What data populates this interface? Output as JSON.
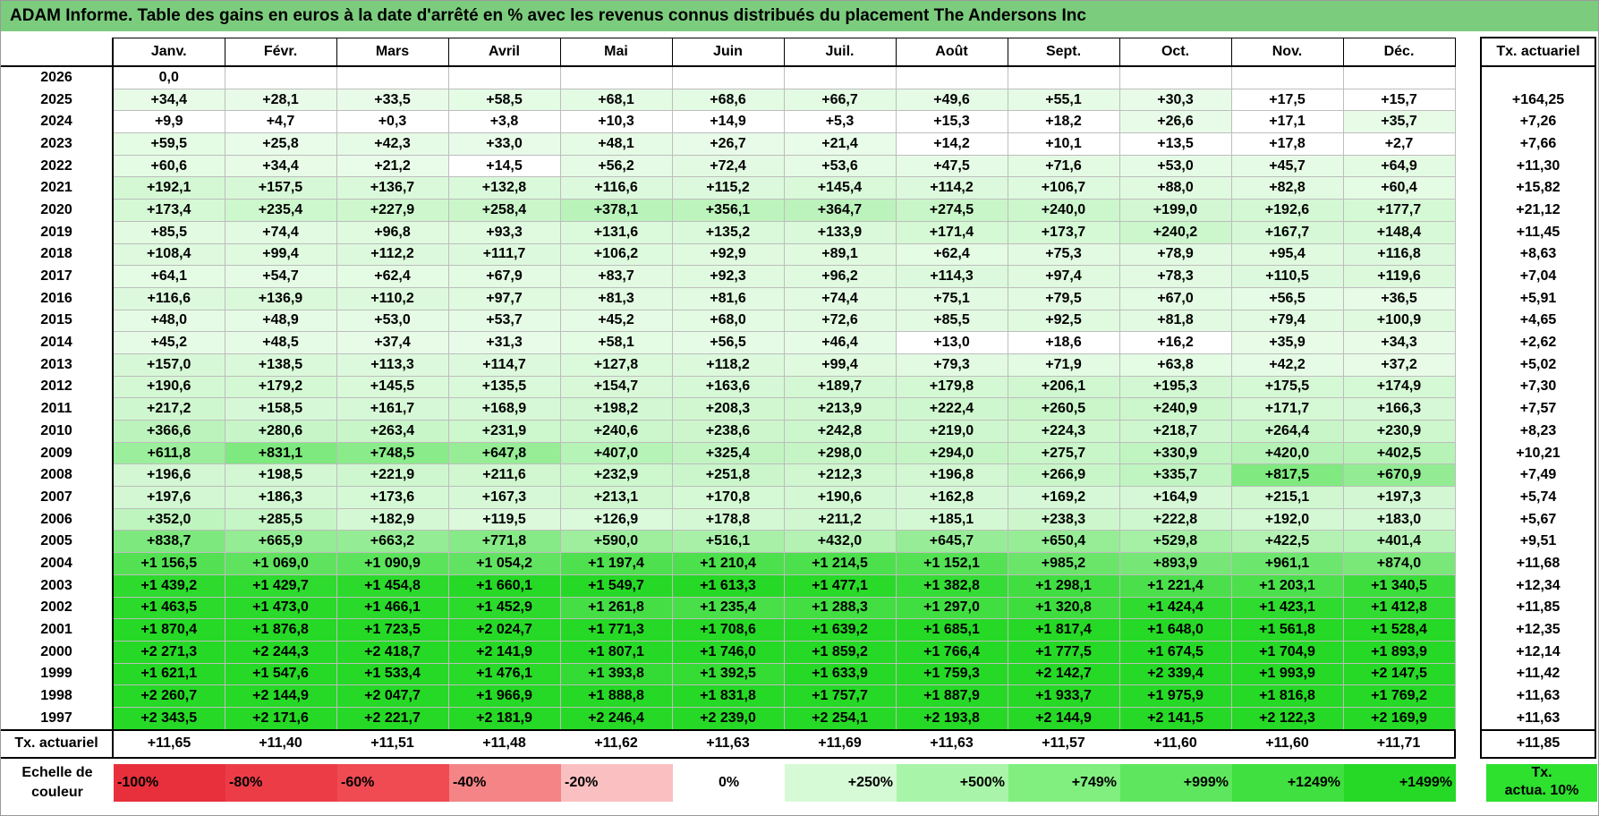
{
  "title": "ADAM Informe. Table des gains en euros à la date d'arrêté en % avec les revenus connus distribués du placement The Andersons Inc",
  "months": [
    "Janv.",
    "Févr.",
    "Mars",
    "Avril",
    "Mai",
    "Juin",
    "Juil.",
    "Août",
    "Sept.",
    "Oct.",
    "Nov.",
    "Déc."
  ],
  "txa_header": "Tx. actuariel",
  "rows": [
    {
      "year": "2026",
      "values": [
        "0,0",
        "",
        "",
        "",
        "",
        "",
        "",
        "",
        "",
        "",
        "",
        ""
      ],
      "txa": ""
    },
    {
      "year": "2025",
      "values": [
        "+34,4",
        "+28,1",
        "+33,5",
        "+58,5",
        "+68,1",
        "+68,6",
        "+66,7",
        "+49,6",
        "+55,1",
        "+30,3",
        "+17,5",
        "+15,7"
      ],
      "txa": "+164,25"
    },
    {
      "year": "2024",
      "values": [
        "+9,9",
        "+4,7",
        "+0,3",
        "+3,8",
        "+10,3",
        "+14,9",
        "+5,3",
        "+15,3",
        "+18,2",
        "+26,6",
        "+17,1",
        "+35,7"
      ],
      "txa": "+7,26"
    },
    {
      "year": "2023",
      "values": [
        "+59,5",
        "+25,8",
        "+42,3",
        "+33,0",
        "+48,1",
        "+26,7",
        "+21,4",
        "+14,2",
        "+10,1",
        "+13,5",
        "+17,8",
        "+2,7"
      ],
      "txa": "+7,66"
    },
    {
      "year": "2022",
      "values": [
        "+60,6",
        "+34,4",
        "+21,2",
        "+14,5",
        "+56,2",
        "+72,4",
        "+53,6",
        "+47,5",
        "+71,6",
        "+53,0",
        "+45,7",
        "+64,9"
      ],
      "txa": "+11,30"
    },
    {
      "year": "2021",
      "values": [
        "+192,1",
        "+157,5",
        "+136,7",
        "+132,8",
        "+116,6",
        "+115,2",
        "+145,4",
        "+114,2",
        "+106,7",
        "+88,0",
        "+82,8",
        "+60,4"
      ],
      "txa": "+15,82"
    },
    {
      "year": "2020",
      "values": [
        "+173,4",
        "+235,4",
        "+227,9",
        "+258,4",
        "+378,1",
        "+356,1",
        "+364,7",
        "+274,5",
        "+240,0",
        "+199,0",
        "+192,6",
        "+177,7"
      ],
      "txa": "+21,12"
    },
    {
      "year": "2019",
      "values": [
        "+85,5",
        "+74,4",
        "+96,8",
        "+93,3",
        "+131,6",
        "+135,2",
        "+133,9",
        "+171,4",
        "+173,7",
        "+240,2",
        "+167,7",
        "+148,4"
      ],
      "txa": "+11,45"
    },
    {
      "year": "2018",
      "values": [
        "+108,4",
        "+99,4",
        "+112,2",
        "+111,7",
        "+106,2",
        "+92,9",
        "+89,1",
        "+62,4",
        "+75,3",
        "+78,9",
        "+95,4",
        "+116,8"
      ],
      "txa": "+8,63"
    },
    {
      "year": "2017",
      "values": [
        "+64,1",
        "+54,7",
        "+62,4",
        "+67,9",
        "+83,7",
        "+92,3",
        "+96,2",
        "+114,3",
        "+97,4",
        "+78,3",
        "+110,5",
        "+119,6"
      ],
      "txa": "+7,04"
    },
    {
      "year": "2016",
      "values": [
        "+116,6",
        "+136,9",
        "+110,2",
        "+97,7",
        "+81,3",
        "+81,6",
        "+74,4",
        "+75,1",
        "+79,5",
        "+67,0",
        "+56,5",
        "+36,5"
      ],
      "txa": "+5,91"
    },
    {
      "year": "2015",
      "values": [
        "+48,0",
        "+48,9",
        "+53,0",
        "+53,7",
        "+45,2",
        "+68,0",
        "+72,6",
        "+85,5",
        "+92,5",
        "+81,8",
        "+79,4",
        "+100,9"
      ],
      "txa": "+4,65"
    },
    {
      "year": "2014",
      "values": [
        "+45,2",
        "+48,5",
        "+37,4",
        "+31,3",
        "+58,1",
        "+56,5",
        "+46,4",
        "+13,0",
        "+18,6",
        "+16,2",
        "+35,9",
        "+34,3"
      ],
      "txa": "+2,62"
    },
    {
      "year": "2013",
      "values": [
        "+157,0",
        "+138,5",
        "+113,3",
        "+114,7",
        "+127,8",
        "+118,2",
        "+99,4",
        "+79,3",
        "+71,9",
        "+63,8",
        "+42,2",
        "+37,2"
      ],
      "txa": "+5,02"
    },
    {
      "year": "2012",
      "values": [
        "+190,6",
        "+179,2",
        "+145,5",
        "+135,5",
        "+154,7",
        "+163,6",
        "+189,7",
        "+179,8",
        "+206,1",
        "+195,3",
        "+175,5",
        "+174,9"
      ],
      "txa": "+7,30"
    },
    {
      "year": "2011",
      "values": [
        "+217,2",
        "+158,5",
        "+161,7",
        "+168,9",
        "+198,2",
        "+208,3",
        "+213,9",
        "+222,4",
        "+260,5",
        "+240,9",
        "+171,7",
        "+166,3"
      ],
      "txa": "+7,57"
    },
    {
      "year": "2010",
      "values": [
        "+366,6",
        "+280,6",
        "+263,4",
        "+231,9",
        "+240,6",
        "+238,6",
        "+242,8",
        "+219,0",
        "+224,3",
        "+218,7",
        "+264,4",
        "+230,9"
      ],
      "txa": "+8,23"
    },
    {
      "year": "2009",
      "values": [
        "+611,8",
        "+831,1",
        "+748,5",
        "+647,8",
        "+407,0",
        "+325,4",
        "+298,0",
        "+294,0",
        "+275,7",
        "+330,9",
        "+420,0",
        "+402,5"
      ],
      "txa": "+10,21"
    },
    {
      "year": "2008",
      "values": [
        "+196,6",
        "+198,5",
        "+221,9",
        "+211,6",
        "+232,9",
        "+251,8",
        "+212,3",
        "+196,8",
        "+266,9",
        "+335,7",
        "+817,5",
        "+670,9"
      ],
      "txa": "+7,49"
    },
    {
      "year": "2007",
      "values": [
        "+197,6",
        "+186,3",
        "+173,6",
        "+167,3",
        "+213,1",
        "+170,8",
        "+190,6",
        "+162,8",
        "+169,2",
        "+164,9",
        "+215,1",
        "+197,3"
      ],
      "txa": "+5,74"
    },
    {
      "year": "2006",
      "values": [
        "+352,0",
        "+285,5",
        "+182,9",
        "+119,5",
        "+126,9",
        "+178,8",
        "+211,2",
        "+185,1",
        "+238,3",
        "+222,8",
        "+192,0",
        "+183,0"
      ],
      "txa": "+5,67"
    },
    {
      "year": "2005",
      "values": [
        "+838,7",
        "+665,9",
        "+663,2",
        "+771,8",
        "+590,0",
        "+516,1",
        "+432,0",
        "+645,7",
        "+650,4",
        "+529,8",
        "+422,5",
        "+401,4"
      ],
      "txa": "+9,51"
    },
    {
      "year": "2004",
      "values": [
        "+1 156,5",
        "+1 069,0",
        "+1 090,9",
        "+1 054,2",
        "+1 197,4",
        "+1 210,4",
        "+1 214,5",
        "+1 152,1",
        "+985,2",
        "+893,9",
        "+961,1",
        "+874,0"
      ],
      "txa": "+11,68"
    },
    {
      "year": "2003",
      "values": [
        "+1 439,2",
        "+1 429,7",
        "+1 454,8",
        "+1 660,1",
        "+1 549,7",
        "+1 613,3",
        "+1 477,1",
        "+1 382,8",
        "+1 298,1",
        "+1 221,4",
        "+1 203,1",
        "+1 340,5"
      ],
      "txa": "+12,34"
    },
    {
      "year": "2002",
      "values": [
        "+1 463,5",
        "+1 473,0",
        "+1 466,1",
        "+1 452,9",
        "+1 261,8",
        "+1 235,4",
        "+1 288,3",
        "+1 297,0",
        "+1 320,8",
        "+1 424,4",
        "+1 423,1",
        "+1 412,8"
      ],
      "txa": "+11,85"
    },
    {
      "year": "2001",
      "values": [
        "+1 870,4",
        "+1 876,8",
        "+1 723,5",
        "+2 024,7",
        "+1 771,3",
        "+1 708,6",
        "+1 639,2",
        "+1 685,1",
        "+1 817,4",
        "+1 648,0",
        "+1 561,8",
        "+1 528,4"
      ],
      "txa": "+12,35"
    },
    {
      "year": "2000",
      "values": [
        "+2 271,3",
        "+2 244,3",
        "+2 418,7",
        "+2 141,9",
        "+1 807,1",
        "+1 746,0",
        "+1 859,2",
        "+1 766,4",
        "+1 777,5",
        "+1 674,5",
        "+1 704,9",
        "+1 893,9"
      ],
      "txa": "+12,14"
    },
    {
      "year": "1999",
      "values": [
        "+1 621,1",
        "+1 547,6",
        "+1 533,4",
        "+1 476,1",
        "+1 393,8",
        "+1 392,5",
        "+1 633,9",
        "+1 759,3",
        "+2 142,7",
        "+2 339,4",
        "+1 993,9",
        "+2 147,5"
      ],
      "txa": "+11,42"
    },
    {
      "year": "1998",
      "values": [
        "+2 260,7",
        "+2 144,9",
        "+2 047,7",
        "+1 966,9",
        "+1 888,8",
        "+1 831,8",
        "+1 757,7",
        "+1 887,9",
        "+1 933,7",
        "+1 975,9",
        "+1 816,8",
        "+1 769,2"
      ],
      "txa": "+11,63"
    },
    {
      "year": "1997",
      "values": [
        "+2 343,5",
        "+2 171,6",
        "+2 221,7",
        "+2 181,9",
        "+2 246,4",
        "+2 239,0",
        "+2 254,1",
        "+2 193,8",
        "+2 144,9",
        "+2 141,5",
        "+2 122,3",
        "+2 169,9"
      ],
      "txa": "+11,63"
    }
  ],
  "footer": {
    "label": "Tx. actuariel",
    "values": [
      "+11,65",
      "+11,40",
      "+11,51",
      "+11,48",
      "+11,62",
      "+11,63",
      "+11,69",
      "+11,63",
      "+11,57",
      "+11,60",
      "+11,60",
      "+11,71"
    ],
    "txa": "+11,85"
  },
  "legend": {
    "label": "Echelle de couleur",
    "items": [
      {
        "text": "-100%",
        "color": "#e8303c",
        "align": "left"
      },
      {
        "text": "-80%",
        "color": "#ec3d47",
        "align": "left"
      },
      {
        "text": "-60%",
        "color": "#f04a52",
        "align": "left"
      },
      {
        "text": "-40%",
        "color": "#f48486",
        "align": "left"
      },
      {
        "text": "-20%",
        "color": "#fac0c1",
        "align": "left"
      },
      {
        "text": "0%",
        "color": "#ffffff",
        "align": "center"
      },
      {
        "text": "+250%",
        "color": "#d6f9d6",
        "align": "right"
      },
      {
        "text": "+500%",
        "color": "#a8f4a8",
        "align": "right"
      },
      {
        "text": "+749%",
        "color": "#80ef80",
        "align": "right"
      },
      {
        "text": "+999%",
        "color": "#5ee75e",
        "align": "right"
      },
      {
        "text": "+1249%",
        "color": "#3fe03f",
        "align": "right"
      },
      {
        "text": "+1499%",
        "color": "#26d926",
        "align": "right"
      }
    ],
    "txa_line1": "Tx.",
    "txa_line2": "actua. 10%"
  }
}
